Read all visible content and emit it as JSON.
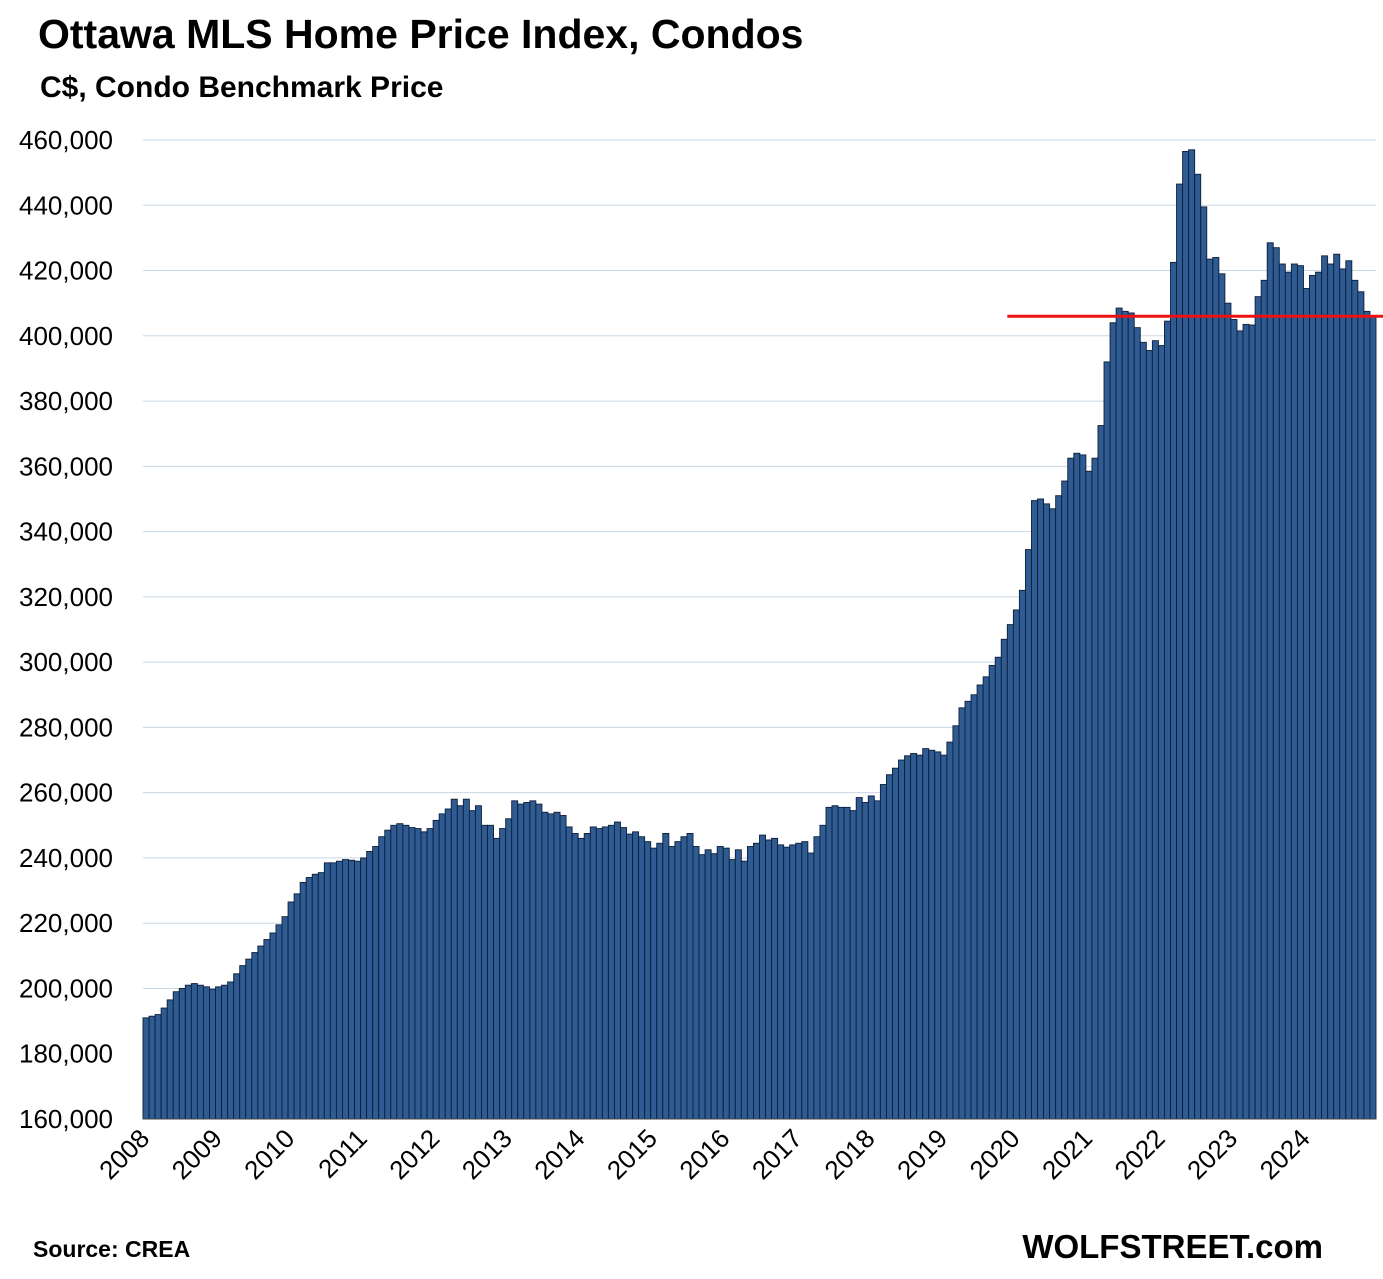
{
  "title": "Ottawa MLS Home Price Index, Condos",
  "subtitle": "C$, Condo Benchmark Price",
  "source": "Source: CREA",
  "brand": "WOLFSTREET.com",
  "colors": {
    "bar_fill": "#2f5b93",
    "bar_stroke": "#0d1f3a",
    "reference_line": "#ee1111",
    "grid": "#c9d7e3"
  },
  "chart_data": {
    "type": "bar",
    "title": "Ottawa MLS Home Price Index, Condos",
    "subtitle": "C$, Condo Benchmark Price",
    "ylim": [
      160000,
      460000
    ],
    "y_ticks": [
      160000,
      180000,
      200000,
      220000,
      240000,
      260000,
      280000,
      300000,
      320000,
      340000,
      360000,
      380000,
      400000,
      420000,
      440000,
      460000
    ],
    "y_tick_labels": [
      "160,000",
      "180,000",
      "200,000",
      "220,000",
      "240,000",
      "260,000",
      "280,000",
      "300,000",
      "320,000",
      "340,000",
      "360,000",
      "380,000",
      "400,000",
      "420,000",
      "440,000",
      "460,000"
    ],
    "x_tick_labels": [
      "2008",
      "2009",
      "2010",
      "2011",
      "2012",
      "2013",
      "2014",
      "2015",
      "2016",
      "2017",
      "2018",
      "2019",
      "2020",
      "2021",
      "2022",
      "2023",
      "2024"
    ],
    "frequency": "monthly",
    "first_period": "2008-01",
    "grid": true,
    "reference_line": {
      "value": 406000,
      "from": "2019-12"
    },
    "values": [
      191000,
      191500,
      192000,
      194000,
      196500,
      199000,
      200000,
      201000,
      201500,
      201000,
      200500,
      199800,
      200500,
      201000,
      202000,
      204500,
      207000,
      209000,
      211000,
      213000,
      215000,
      217000,
      219500,
      222000,
      226500,
      229000,
      232500,
      234000,
      235000,
      235500,
      238500,
      238500,
      239000,
      239500,
      239300,
      239000,
      240000,
      242000,
      243500,
      246500,
      248500,
      250000,
      250500,
      250000,
      249300,
      249000,
      248000,
      249000,
      251500,
      253500,
      255000,
      258000,
      256000,
      258000,
      254500,
      256000,
      250000,
      250000,
      246000,
      249000,
      252000,
      257500,
      256500,
      257000,
      257500,
      256500,
      254000,
      253500,
      254000,
      253000,
      249500,
      247500,
      246000,
      247500,
      249500,
      249000,
      249500,
      250000,
      251000,
      249300,
      247300,
      248000,
      246500,
      245000,
      243000,
      244500,
      247500,
      243500,
      245000,
      246500,
      247500,
      243500,
      241000,
      242500,
      241300,
      243500,
      243000,
      239500,
      242500,
      239000,
      243500,
      244500,
      247000,
      245500,
      246000,
      244000,
      243300,
      244000,
      244500,
      245000,
      241500,
      246500,
      250000,
      255500,
      256000,
      255500,
      255500,
      254500,
      258500,
      257000,
      259000,
      257500,
      262500,
      265500,
      267500,
      270000,
      271300,
      272000,
      271500,
      273500,
      273000,
      272500,
      271500,
      275500,
      280500,
      286000,
      288000,
      290000,
      293000,
      295500,
      299000,
      301500,
      307000,
      311500,
      316000,
      322000,
      334500,
      349500,
      350000,
      348500,
      347000,
      351000,
      355500,
      362500,
      364000,
      363500,
      358500,
      362500,
      372500,
      392000,
      404000,
      408500,
      407500,
      407000,
      402500,
      398000,
      395500,
      398500,
      397000,
      404500,
      422500,
      446500,
      456500,
      457000,
      449500,
      439500,
      423500,
      424000,
      419000,
      410000,
      405000,
      401500,
      403500,
      403300,
      412000,
      417000,
      428500,
      427000,
      422000,
      419500,
      422000,
      421500,
      414500,
      418500,
      419500,
      424500,
      422000,
      425000,
      420500,
      423000,
      417000,
      413500,
      407500,
      406000
    ]
  }
}
